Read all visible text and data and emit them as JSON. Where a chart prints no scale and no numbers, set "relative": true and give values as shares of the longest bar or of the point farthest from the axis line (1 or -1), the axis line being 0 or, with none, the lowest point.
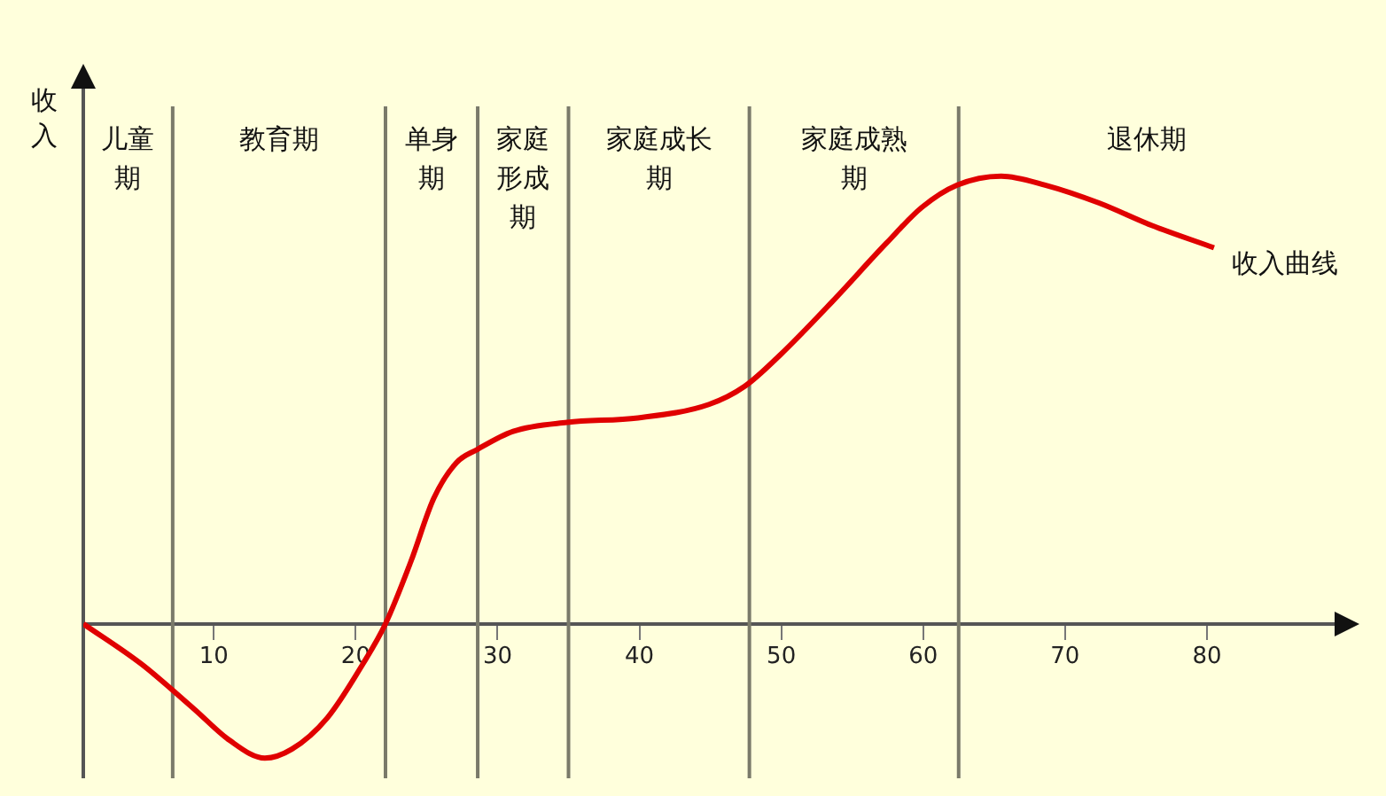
{
  "chart_data": {
    "type": "line",
    "ylabel": "收入",
    "relative": true,
    "xlim": [
      0.8,
      89
    ],
    "xticks": [
      10,
      20,
      30,
      40,
      50,
      60,
      70,
      80
    ],
    "x": [
      0.8,
      4.9,
      8.6,
      11.1,
      13.6,
      15.5,
      18,
      20.5,
      22.1,
      23.9,
      25.5,
      27.1,
      28.6,
      31.1,
      34.9,
      39.9,
      44.9,
      47.4,
      49.9,
      53.6,
      57.4,
      59.9,
      62.4,
      65.5,
      68.6,
      72.4,
      76.1,
      80.5
    ],
    "series": [
      {
        "name": "收入曲线",
        "color": "#e00000",
        "values": [
          0,
          -0.09,
          -0.19,
          -0.26,
          -0.3,
          -0.28,
          -0.21,
          -0.09,
          0,
          0.14,
          0.28,
          0.36,
          0.39,
          0.43,
          0.45,
          0.46,
          0.49,
          0.53,
          0.6,
          0.72,
          0.85,
          0.93,
          0.98,
          1,
          0.98,
          0.94,
          0.89,
          0.84
        ]
      }
    ],
    "ref_lines": [
      {
        "axis": "x",
        "value": 7.1
      },
      {
        "axis": "x",
        "value": 22.1
      },
      {
        "axis": "x",
        "value": 28.6
      },
      {
        "axis": "x",
        "value": 35
      },
      {
        "axis": "x",
        "value": 47.75
      },
      {
        "axis": "x",
        "value": 62.5
      }
    ],
    "annotations": [
      "儿童期",
      "教育期",
      "单身期",
      "家庭形成期",
      "家庭成长期",
      "家庭成熟期",
      "退休期"
    ],
    "marker": "none",
    "grid": false,
    "legend": false
  }
}
